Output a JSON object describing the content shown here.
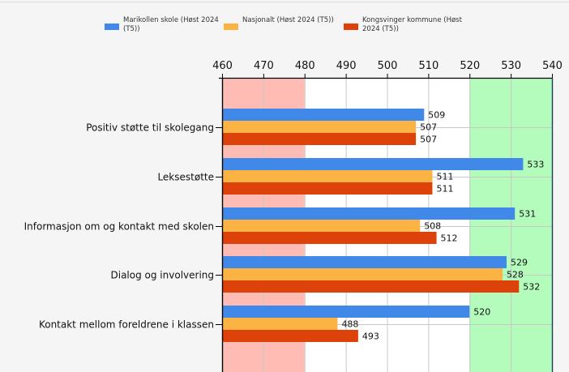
{
  "chart_data": {
    "type": "bar",
    "orientation": "horizontal",
    "categories": [
      "Positiv støtte til skolegang",
      "Leksestøtte",
      "Informasjon om og kontakt med skolen",
      "Dialog og involvering",
      "Kontakt mellom foreldrene i klassen"
    ],
    "series": [
      {
        "name": "Marikollen skole (Høst 2024 (T5))",
        "color": "#4089e8",
        "values": [
          509,
          533,
          531,
          529,
          520
        ]
      },
      {
        "name": "Nasjonalt (Høst 2024 (T5))",
        "color": "#fbb344",
        "values": [
          507,
          511,
          508,
          528,
          488
        ]
      },
      {
        "name": "Kongsvinger kommune (Høst 2024 (T5))",
        "color": "#dd420b",
        "values": [
          507,
          511,
          512,
          532,
          493
        ]
      }
    ],
    "xlim": [
      460,
      540
    ],
    "xticks": [
      "460",
      "470",
      "480",
      "490",
      "500",
      "510",
      "520",
      "530",
      "540"
    ],
    "xtick_values": [
      460,
      470,
      480,
      490,
      500,
      510,
      520,
      530,
      540
    ],
    "bands": [
      {
        "from": 460,
        "to": 480,
        "color": "#ffbcb4"
      },
      {
        "from": 520,
        "to": 540,
        "color": "#b4fcbc"
      }
    ],
    "axis_position": "top",
    "legend_position": "top",
    "grid": true,
    "title": "",
    "xlabel": "",
    "ylabel": ""
  },
  "legend": {
    "items": [
      {
        "line1": "Marikollen skole (Høst 2024",
        "line2": "(T5))"
      },
      {
        "line1": "Nasjonalt (Høst 2024 (T5))",
        "line2": ""
      },
      {
        "line1": "Kongsvinger kommune (Høst",
        "line2": "2024 (T5))"
      }
    ]
  }
}
